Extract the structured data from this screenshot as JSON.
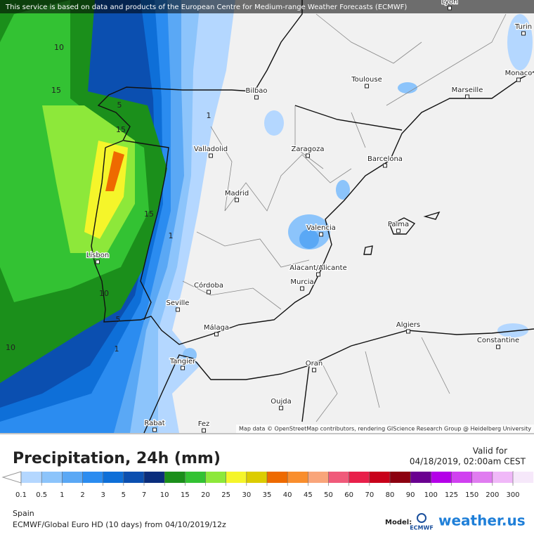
{
  "header": {
    "notice": "This service is based on data and products of the European Centre for Medium-range Weather Forecasts (ECMWF)"
  },
  "map": {
    "cities": [
      "Lyon",
      "Turin",
      "Monaco",
      "Toulouse",
      "Marseille",
      "Bilbao",
      "Valladolid",
      "Zaragoza",
      "Barcelona",
      "Madrid",
      "Palma",
      "Valencia",
      "Lisbon",
      "Alacant/Alicante",
      "Murcia",
      "Córdoba",
      "Seville",
      "Málaga",
      "Algiers",
      "Constantine",
      "Tangier",
      "Oran",
      "Oujda",
      "Rabat",
      "Fez"
    ],
    "contour_labels": [
      "10",
      "15",
      "5",
      "15",
      "1",
      "1",
      "15",
      "10",
      "5",
      "1",
      "10"
    ],
    "attribution": "Map data © OpenStreetMap contributors, rendering GIScience Research Group @ Heidelberg University"
  },
  "footer": {
    "title": "Precipitation, 24h (mm)",
    "valid_label": "Valid for",
    "valid_time": "04/18/2019, 02:00am CEST",
    "legend": {
      "ticks": [
        "0.1",
        "0.5",
        "1",
        "2",
        "3",
        "5",
        "7",
        "10",
        "15",
        "20",
        "25",
        "30",
        "35",
        "40",
        "45",
        "50",
        "60",
        "70",
        "80",
        "90",
        "100",
        "125",
        "150",
        "200",
        "300"
      ],
      "colors": [
        "#b4d7ff",
        "#8cc4fb",
        "#5aa8f5",
        "#2b8cf0",
        "#0e6fd8",
        "#0b4fb0",
        "#0a2d7c",
        "#1b8f1b",
        "#33c233",
        "#8de83a",
        "#f5f52a",
        "#dccc00",
        "#ee6a00",
        "#f98e2d",
        "#f9a57a",
        "#f05a7a",
        "#e8204a",
        "#c8001a",
        "#8c0010",
        "#6a0090",
        "#b400e8",
        "#d040f0",
        "#e07cf0",
        "#f0b8f8",
        "#f6e8fa"
      ]
    },
    "region": "Spain",
    "model_run": "ECMWF/Global Euro HD (10 days) from 04/10/2019/12z",
    "model_label": "Model:",
    "ecmwf": "ECMWF",
    "brand": "weather.us"
  }
}
